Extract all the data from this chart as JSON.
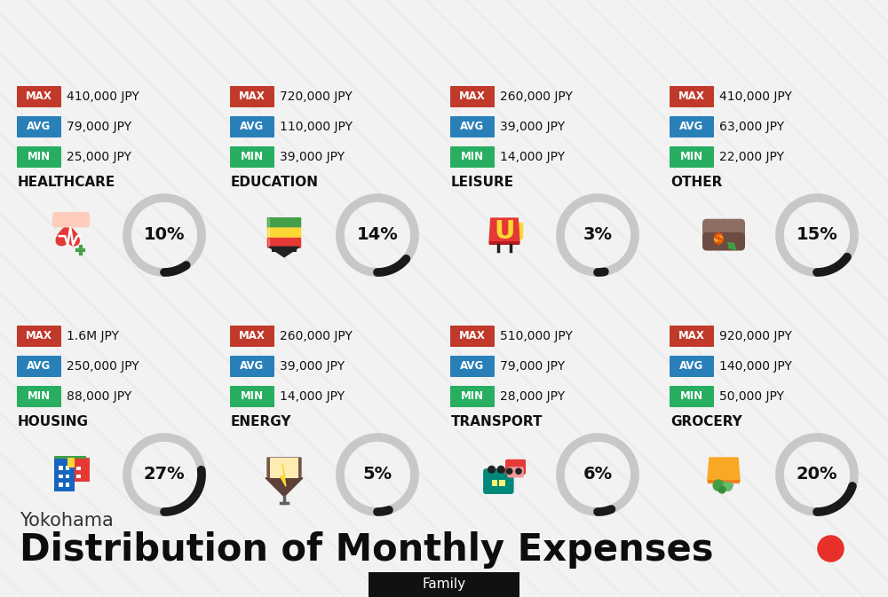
{
  "title": "Distribution of Monthly Expenses",
  "subtitle": "Yokohama",
  "tag": "Family",
  "bg_color": "#f2f2f2",
  "stripe_color": "#e6e6e6",
  "categories": [
    {
      "name": "HOUSING",
      "pct": 27,
      "min": "88,000 JPY",
      "avg": "250,000 JPY",
      "max": "1.6M JPY",
      "row": 0,
      "col": 0
    },
    {
      "name": "ENERGY",
      "pct": 5,
      "min": "14,000 JPY",
      "avg": "39,000 JPY",
      "max": "260,000 JPY",
      "row": 0,
      "col": 1
    },
    {
      "name": "TRANSPORT",
      "pct": 6,
      "min": "28,000 JPY",
      "avg": "79,000 JPY",
      "max": "510,000 JPY",
      "row": 0,
      "col": 2
    },
    {
      "name": "GROCERY",
      "pct": 20,
      "min": "50,000 JPY",
      "avg": "140,000 JPY",
      "max": "920,000 JPY",
      "row": 0,
      "col": 3
    },
    {
      "name": "HEALTHCARE",
      "pct": 10,
      "min": "25,000 JPY",
      "avg": "79,000 JPY",
      "max": "410,000 JPY",
      "row": 1,
      "col": 0
    },
    {
      "name": "EDUCATION",
      "pct": 14,
      "min": "39,000 JPY",
      "avg": "110,000 JPY",
      "max": "720,000 JPY",
      "row": 1,
      "col": 1
    },
    {
      "name": "LEISURE",
      "pct": 3,
      "min": "14,000 JPY",
      "avg": "39,000 JPY",
      "max": "260,000 JPY",
      "row": 1,
      "col": 2
    },
    {
      "name": "OTHER",
      "pct": 15,
      "min": "22,000 JPY",
      "avg": "63,000 JPY",
      "max": "410,000 JPY",
      "row": 1,
      "col": 3
    }
  ],
  "color_min": "#27ae60",
  "color_avg": "#2980b9",
  "color_max": "#c0392b",
  "color_ring_filled": "#1a1a1a",
  "color_ring_empty": "#c8c8c8",
  "tag_bg": "#111111",
  "tag_fg": "#ffffff",
  "red_dot_color": "#e8302a",
  "title_color": "#0d0d0d",
  "subtitle_color": "#333333",
  "name_color": "#111111",
  "value_color": "#111111"
}
